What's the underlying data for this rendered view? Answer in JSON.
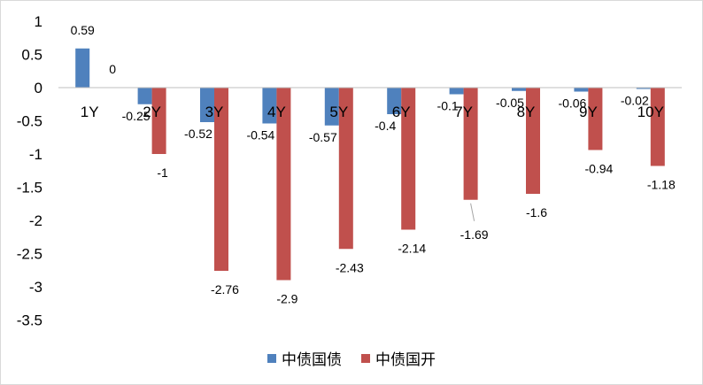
{
  "chart_data": {
    "type": "bar",
    "categories": [
      "1Y",
      "2Y",
      "3Y",
      "4Y",
      "5Y",
      "6Y",
      "7Y",
      "8Y",
      "9Y",
      "10Y"
    ],
    "series": [
      {
        "name": "中债国债",
        "color": "#4f81bd",
        "values": [
          0.59,
          -0.25,
          -0.52,
          -0.54,
          -0.57,
          -0.4,
          -0.1,
          -0.05,
          -0.06,
          -0.02
        ]
      },
      {
        "name": "中债国开",
        "color": "#c0504d",
        "values": [
          0,
          -1,
          -2.76,
          -2.9,
          -2.43,
          -2.14,
          -1.69,
          -1.6,
          -0.94,
          -1.18
        ]
      }
    ],
    "data_labels": [
      [
        "0.59",
        "-0.25",
        "-0.52",
        "-0.54",
        "-0.57",
        "-0.4",
        "-0.1",
        "-0.05",
        "-0.06",
        "-0.02"
      ],
      [
        "0",
        "-1",
        "-2.76",
        "-2.9",
        "-2.43",
        "-2.14",
        "-1.69",
        "-1.6",
        "-0.94",
        "-1.18"
      ]
    ],
    "y_ticks": [
      "1",
      "0.5",
      "0",
      "-0.5",
      "-1",
      "-1.5",
      "-2",
      "-2.5",
      "-3",
      "-3.5"
    ],
    "ylim": [
      -3.5,
      1
    ],
    "legend_position": "bottom",
    "grid": false
  }
}
